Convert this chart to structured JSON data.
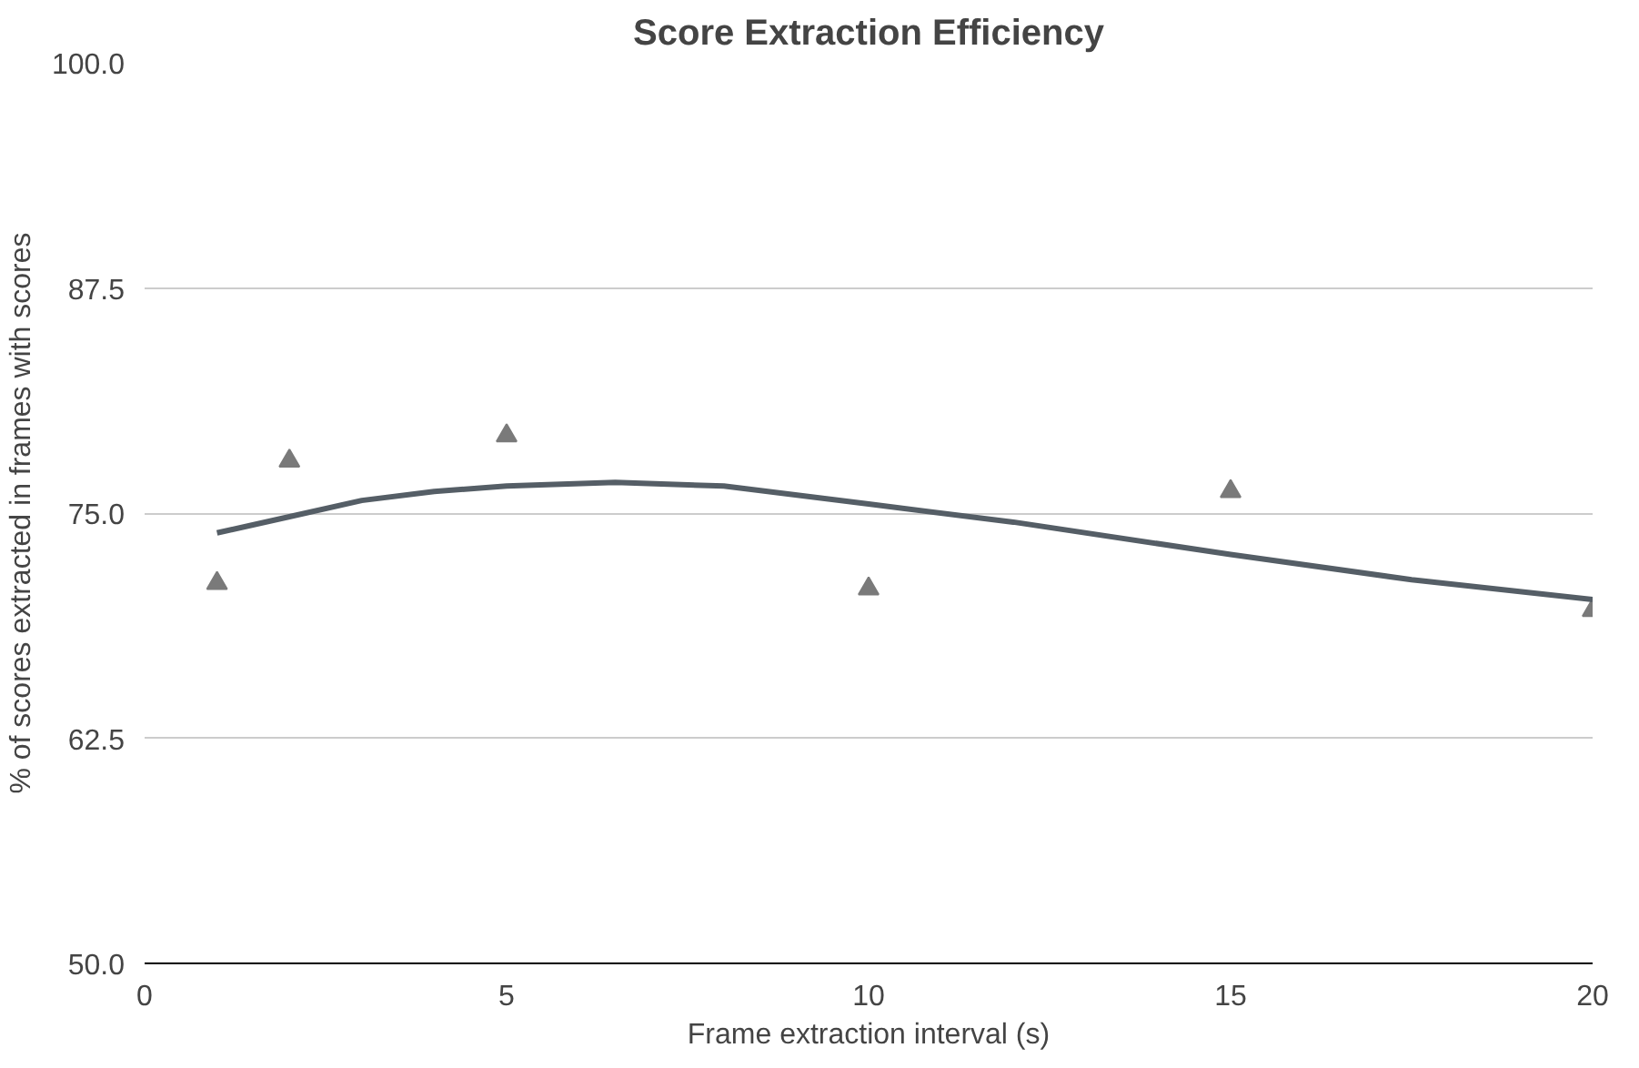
{
  "chart_data": {
    "type": "scatter",
    "title": "Score Extraction Efficiency",
    "xlabel": "Frame extraction interval (s)",
    "ylabel": "% of scores extracted in frames with scores",
    "xlim": [
      0,
      20
    ],
    "xticks": [
      0,
      5,
      10,
      15,
      20
    ],
    "ylim": [
      50,
      100
    ],
    "yticks": [
      {
        "value": 50,
        "label": "50.0"
      },
      {
        "value": 62.5,
        "label": "62.5"
      },
      {
        "value": 75,
        "label": "75.0"
      },
      {
        "value": 87.5,
        "label": "87.5"
      },
      {
        "value": 100,
        "label": "100.0"
      }
    ],
    "grid": "y",
    "marker": "triangle",
    "series": [
      {
        "color": "#7a7a7a",
        "x": [
          1,
          2,
          5,
          10,
          15,
          20
        ],
        "values": [
          71.1,
          77.9,
          79.3,
          70.8,
          76.2,
          69.6
        ]
      },
      {
        "type": "line",
        "color": "#555e66",
        "line_style": "solid",
        "marker": "none",
        "x": [
          1,
          2,
          3,
          4,
          5,
          6.5,
          8,
          10,
          12,
          15,
          17.5,
          20
        ],
        "values": [
          73.9,
          74.8,
          75.7,
          76.2,
          76.5,
          76.7,
          76.5,
          75.5,
          74.5,
          72.7,
          71.3,
          70.2
        ]
      }
    ]
  }
}
